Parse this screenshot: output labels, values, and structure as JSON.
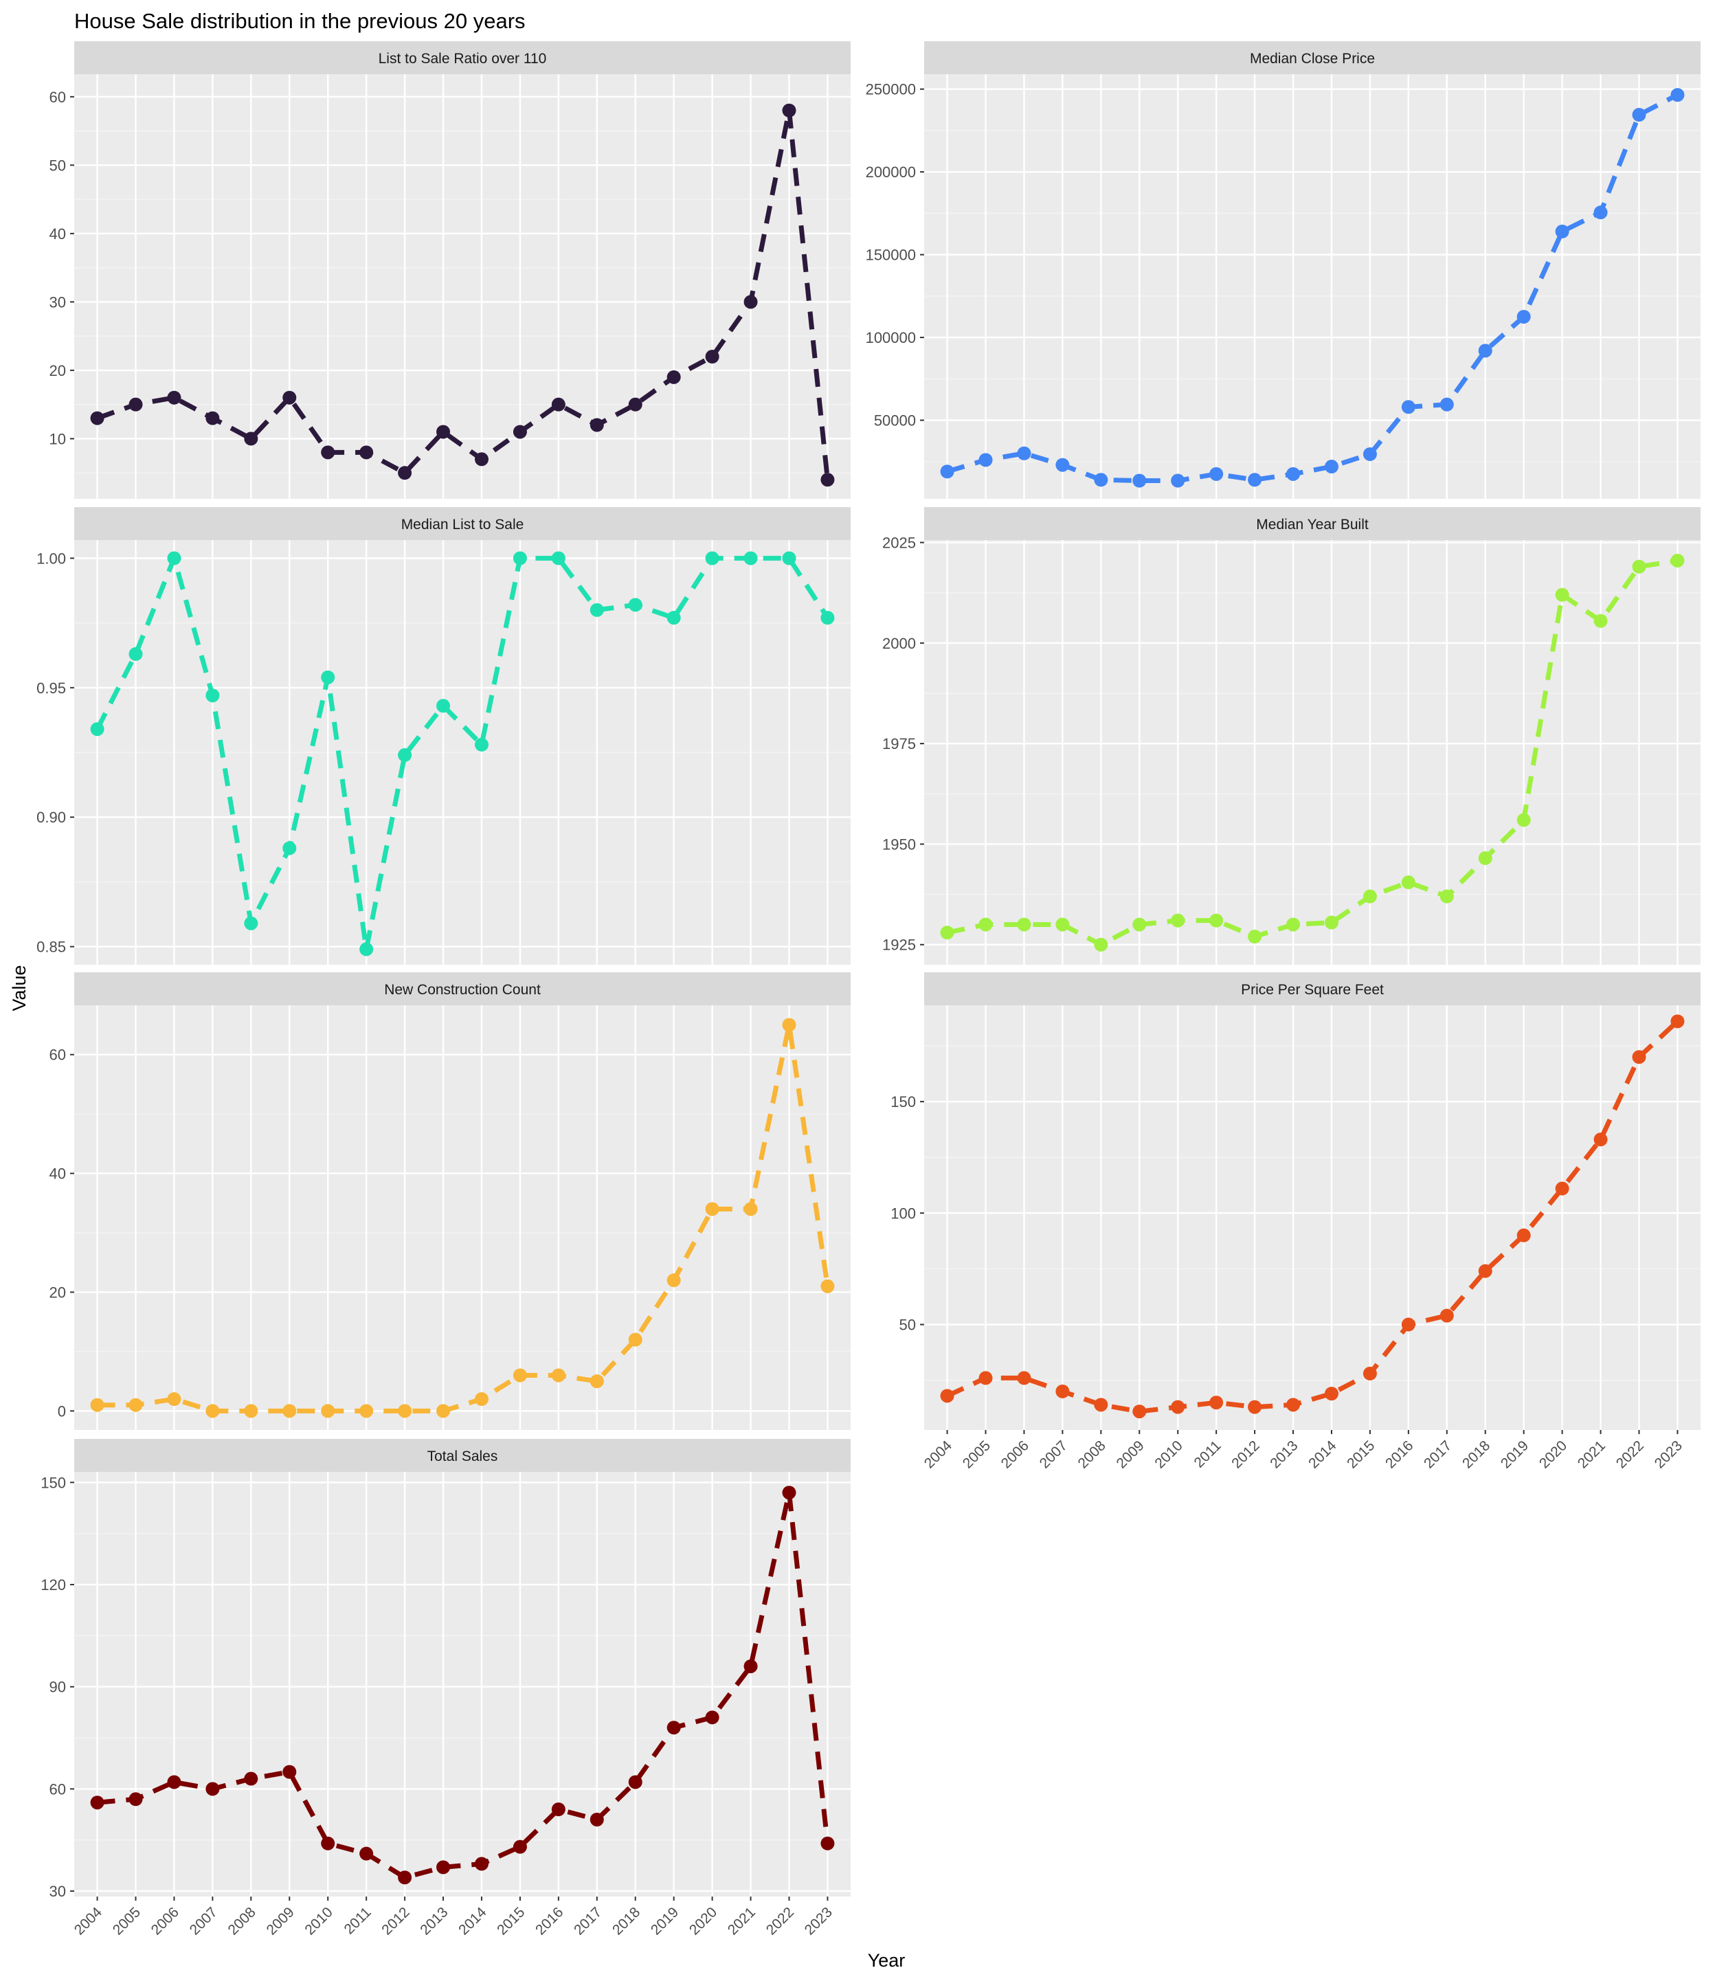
{
  "title": "House Sale distribution in the previous 20 years",
  "xlabel": "Year",
  "ylabel": "Value",
  "years": [
    "2004",
    "2005",
    "2006",
    "2007",
    "2008",
    "2009",
    "2010",
    "2011",
    "2012",
    "2013",
    "2014",
    "2015",
    "2016",
    "2017",
    "2018",
    "2019",
    "2020",
    "2021",
    "2022",
    "2023"
  ],
  "chart_data": [
    {
      "type": "line",
      "title": "List to Sale Ratio over 110",
      "color": "#2c1a3c",
      "xlim": [
        2003.4,
        2023.6
      ],
      "ylim": [
        1.2,
        63.3
      ],
      "yticks": [
        10,
        20,
        30,
        40,
        50,
        60
      ],
      "ytick_labels": [
        "10",
        "20",
        "30",
        "40",
        "50",
        "60"
      ],
      "values": [
        13,
        15,
        16,
        13,
        10,
        16,
        8,
        8,
        5,
        11,
        7,
        11,
        15,
        12,
        15,
        19,
        22,
        30,
        58,
        4
      ]
    },
    {
      "type": "line",
      "title": "Median Close Price",
      "color": "#4285f4",
      "xlim": [
        2003.4,
        2023.6
      ],
      "ylim": [
        2500,
        259000
      ],
      "yticks": [
        50000,
        100000,
        150000,
        200000,
        250000
      ],
      "ytick_labels": [
        "50000",
        "100000",
        "150000",
        "200000",
        "250000"
      ],
      "values": [
        19000,
        26000,
        30000,
        23000,
        14000,
        13500,
        13500,
        17500,
        14000,
        17500,
        22000,
        29500,
        58000,
        59500,
        92000,
        112500,
        164000,
        175500,
        234500,
        246500
      ]
    },
    {
      "type": "line",
      "title": "Median List to Sale",
      "color": "#1fe0b0",
      "xlim": [
        2003.4,
        2023.6
      ],
      "ylim": [
        0.843,
        1.007
      ],
      "yticks": [
        0.85,
        0.9,
        0.95,
        1.0
      ],
      "ytick_labels": [
        "0.85",
        "0.90",
        "0.95",
        "1.00"
      ],
      "values": [
        0.934,
        0.963,
        1.0,
        0.947,
        0.859,
        0.888,
        0.954,
        0.849,
        0.924,
        0.943,
        0.928,
        1.0,
        1.0,
        0.98,
        0.982,
        0.977,
        1.0,
        1.0,
        1.0,
        0.977
      ]
    },
    {
      "type": "line",
      "title": "Median Year Built",
      "color": "#a0f040",
      "xlim": [
        2003.4,
        2023.6
      ],
      "ylim": [
        1920,
        2025.6
      ],
      "yticks": [
        1925,
        1950,
        1975,
        2000,
        2025
      ],
      "ytick_labels": [
        "1925",
        "1950",
        "1975",
        "2000",
        "2025"
      ],
      "values": [
        1928,
        1930,
        1930,
        1930,
        1925,
        1930,
        1931,
        1931,
        1927,
        1930,
        1930.5,
        1937,
        1940.5,
        1937,
        1946.5,
        1956,
        2012,
        2005.5,
        2019,
        2020.5
      ]
    },
    {
      "type": "line",
      "title": "New Construction Count",
      "color": "#f8b537",
      "xlim": [
        2003.4,
        2023.6
      ],
      "ylim": [
        -3.2,
        68.3
      ],
      "yticks": [
        0,
        20,
        40,
        60
      ],
      "ytick_labels": [
        "0",
        "20",
        "40",
        "60"
      ],
      "values": [
        1,
        1,
        2,
        0,
        0,
        0,
        0,
        0,
        0,
        0,
        2,
        6,
        6,
        5,
        12,
        22,
        34,
        34,
        65,
        21
      ]
    },
    {
      "type": "line",
      "title": "Price Per Square Feet",
      "color": "#e8501a",
      "xlim": [
        2003.4,
        2023.6
      ],
      "ylim": [
        2.7,
        193.2
      ],
      "yticks": [
        50,
        100,
        150
      ],
      "ytick_labels": [
        "50",
        "100",
        "150"
      ],
      "values": [
        18,
        26,
        26,
        20,
        14,
        11,
        13,
        15,
        13,
        14,
        19,
        28,
        50,
        54,
        74,
        90,
        111,
        133,
        170,
        186
      ]
    },
    {
      "type": "line",
      "title": "Total Sales",
      "color": "#7a0000",
      "xlim": [
        2003.4,
        2023.6
      ],
      "ylim": [
        28.4,
        153.1
      ],
      "yticks": [
        30,
        60,
        90,
        120,
        150
      ],
      "ytick_labels": [
        "30",
        "60",
        "90",
        "120",
        "150"
      ],
      "values": [
        56,
        57,
        62,
        60,
        63,
        65,
        44,
        41,
        34,
        37,
        38,
        43,
        54,
        51,
        62,
        78,
        81,
        96,
        147,
        44
      ]
    }
  ]
}
